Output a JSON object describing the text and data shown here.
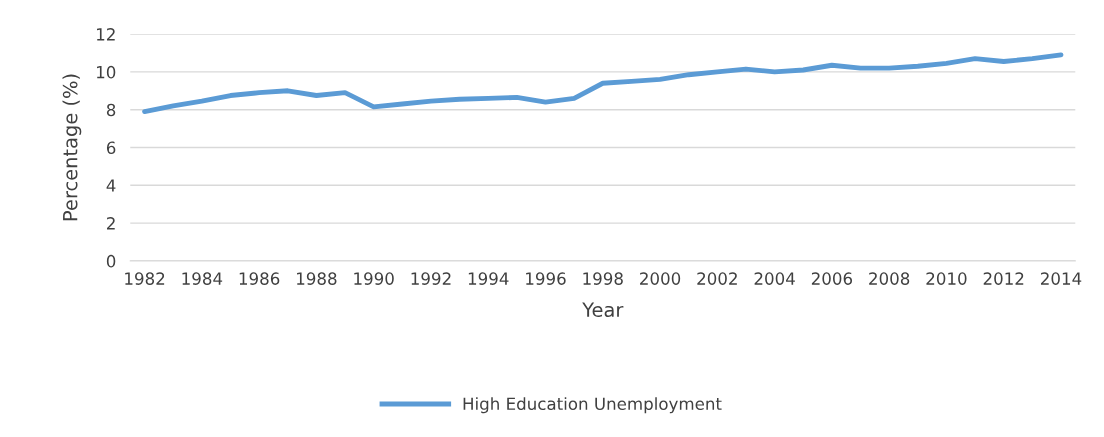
{
  "chart_data": {
    "type": "line",
    "xlabel": "Year",
    "ylabel": "Percentage (%)",
    "categories": [
      "1982",
      null,
      "1984",
      null,
      "1986",
      null,
      "1988",
      null,
      "1990",
      null,
      "1992",
      null,
      "1994",
      null,
      "1996",
      null,
      "1998",
      null,
      "2000",
      null,
      "2002",
      null,
      "2004",
      null,
      "2006",
      null,
      "2008",
      null,
      "2010",
      null,
      "2012",
      null,
      "2014"
    ],
    "series": [
      {
        "name": "High Education Unemployment",
        "color": "#5b9bd5",
        "values": [
          7.9,
          8.2,
          8.45,
          8.75,
          8.9,
          9.0,
          8.75,
          8.9,
          8.15,
          8.3,
          8.45,
          8.55,
          8.6,
          8.65,
          8.4,
          8.6,
          9.4,
          9.5,
          9.6,
          9.85,
          10.0,
          10.15,
          10.0,
          10.1,
          10.35,
          10.2,
          10.2,
          10.3,
          10.45,
          10.7,
          10.55,
          10.7,
          10.9
        ]
      }
    ],
    "ylim": [
      0,
      12
    ],
    "yticks": [
      0,
      2,
      4,
      6,
      8,
      10,
      12
    ],
    "grid": "y",
    "legend": "bottom",
    "marker": "none",
    "line_style": "solid"
  }
}
